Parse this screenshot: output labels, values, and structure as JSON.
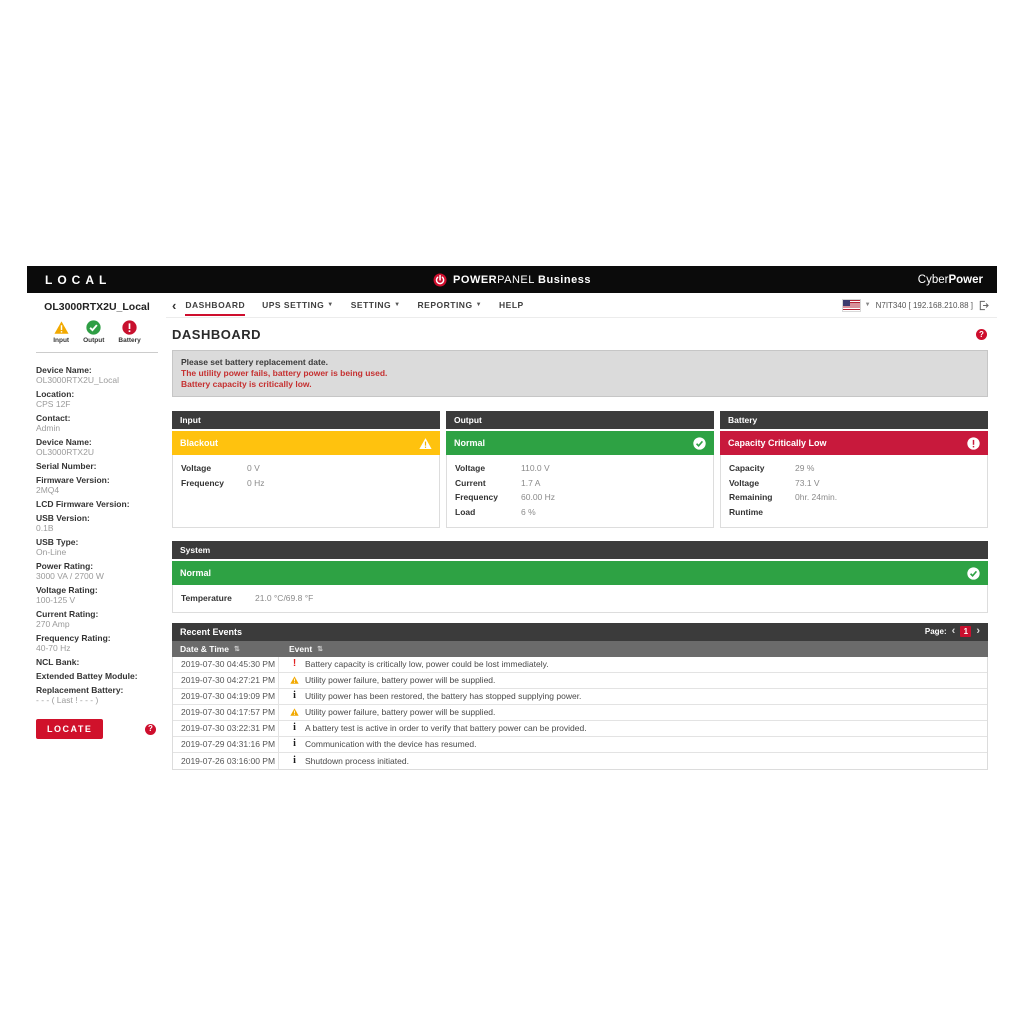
{
  "topbar": {
    "location_label": "LOCAL",
    "brand": {
      "power": "POWER",
      "panel": "PANEL",
      "suffix": "Business"
    },
    "logo": {
      "cyber": "Cyber",
      "power": "Power"
    }
  },
  "nav": {
    "back_icon": "‹",
    "items": [
      {
        "label": "DASHBOARD",
        "active": true,
        "caret": false
      },
      {
        "label": "UPS SETTING",
        "active": false,
        "caret": true
      },
      {
        "label": "SETTING",
        "active": false,
        "caret": true
      },
      {
        "label": "REPORTING",
        "active": false,
        "caret": true
      },
      {
        "label": "HELP",
        "active": false,
        "caret": false
      }
    ]
  },
  "session": {
    "device_id": "N7IT340 [ 192.168.210.88 ]"
  },
  "page": {
    "title": "DASHBOARD"
  },
  "alerts": [
    {
      "text": "Please set battery replacement date.",
      "severity": "notice"
    },
    {
      "text": "The utility power fails, battery power is being used.",
      "severity": "critical"
    },
    {
      "text": "Battery capacity is critically low.",
      "severity": "critical"
    }
  ],
  "sidebar": {
    "device_title": "OL3000RTX2U_Local",
    "status_icons": [
      {
        "label": "Input",
        "state": "warning"
      },
      {
        "label": "Output",
        "state": "ok"
      },
      {
        "label": "Battery",
        "state": "error"
      }
    ],
    "fields": [
      {
        "label": "Device Name:",
        "value": "OL3000RTX2U_Local"
      },
      {
        "label": "Location:",
        "value": "CPS 12F"
      },
      {
        "label": "Contact:",
        "value": "Admin"
      },
      {
        "label": "Device Name:",
        "value": "OL3000RTX2U"
      },
      {
        "label": "Serial Number:",
        "value": ""
      },
      {
        "label": "Firmware Version:",
        "value": "2MQ4"
      },
      {
        "label": "LCD Firmware Version:",
        "value": ""
      },
      {
        "label": "USB Version:",
        "value": "0.1B"
      },
      {
        "label": "USB Type:",
        "value": "On-Line"
      },
      {
        "label": "Power Rating:",
        "value": "3000 VA / 2700 W"
      },
      {
        "label": "Voltage Rating:",
        "value": "100-125 V"
      },
      {
        "label": "Current Rating:",
        "value": "270 Amp"
      },
      {
        "label": "Frequency Rating:",
        "value": "40-70 Hz"
      },
      {
        "label": "NCL Bank:",
        "value": ""
      },
      {
        "label": "Extended Battey Module:",
        "value": ""
      },
      {
        "label": "Replacement Battery:",
        "value": "- - - ( Last ! - - - )"
      }
    ],
    "locate_label": "LOCATE"
  },
  "panels": [
    {
      "title": "Input",
      "status": {
        "text": "Blackout",
        "severity": "warning"
      },
      "rows": [
        {
          "label": "Voltage",
          "value": "0 V"
        },
        {
          "label": "Frequency",
          "value": "0 Hz"
        }
      ]
    },
    {
      "title": "Output",
      "status": {
        "text": "Normal",
        "severity": "ok"
      },
      "rows": [
        {
          "label": "Voltage",
          "value": "110.0 V"
        },
        {
          "label": "Current",
          "value": "1.7 A"
        },
        {
          "label": "Frequency",
          "value": "60.00 Hz"
        },
        {
          "label": "Load",
          "value": "6 %"
        }
      ]
    },
    {
      "title": "Battery",
      "status": {
        "text": "Capacity Critically Low",
        "severity": "error"
      },
      "rows": [
        {
          "label": "Capacity",
          "value": "29 %"
        },
        {
          "label": "Voltage",
          "value": "73.1 V"
        },
        {
          "label": "Remaining Runtime",
          "value": "0hr. 24min."
        }
      ]
    }
  ],
  "system": {
    "title": "System",
    "status": {
      "text": "Normal",
      "severity": "ok"
    },
    "rows": [
      {
        "label": "Temperature",
        "value": "21.0 °C/69.8 °F"
      }
    ]
  },
  "events": {
    "title": "Recent Events",
    "page_label": "Page:",
    "page_number": "1",
    "prev_icon": "‹",
    "next_icon": "›",
    "columns": [
      {
        "label": "Date & Time"
      },
      {
        "label": "Event"
      }
    ],
    "rows": [
      {
        "time": "2019-07-30 04:45:30 PM",
        "icon": "error",
        "text": "Battery capacity is critically low, power could be lost immediately."
      },
      {
        "time": "2019-07-30 04:27:21 PM",
        "icon": "warning",
        "text": "Utility power failure, battery power will be supplied."
      },
      {
        "time": "2019-07-30 04:19:09 PM",
        "icon": "info",
        "text": "Utility power has been restored, the battery has stopped supplying power."
      },
      {
        "time": "2019-07-30 04:17:57 PM",
        "icon": "warning",
        "text": "Utility power failure, battery power will be supplied."
      },
      {
        "time": "2019-07-30 03:22:31 PM",
        "icon": "info",
        "text": "A battery test is active in order to verify that battery power can be provided."
      },
      {
        "time": "2019-07-29 04:31:16 PM",
        "icon": "info",
        "text": "Communication with the device has resumed."
      },
      {
        "time": "2019-07-26 03:16:00 PM",
        "icon": "info",
        "text": "Shutdown process initiated."
      }
    ]
  },
  "colors": {
    "accent_red": "#CE0E2D",
    "warning_yellow": "#FFC20E",
    "ok_green": "#2EA244",
    "error_red": "#C8193C",
    "panel_header_gray": "#3B3B3B",
    "column_header_gray": "#6B6B6B"
  }
}
